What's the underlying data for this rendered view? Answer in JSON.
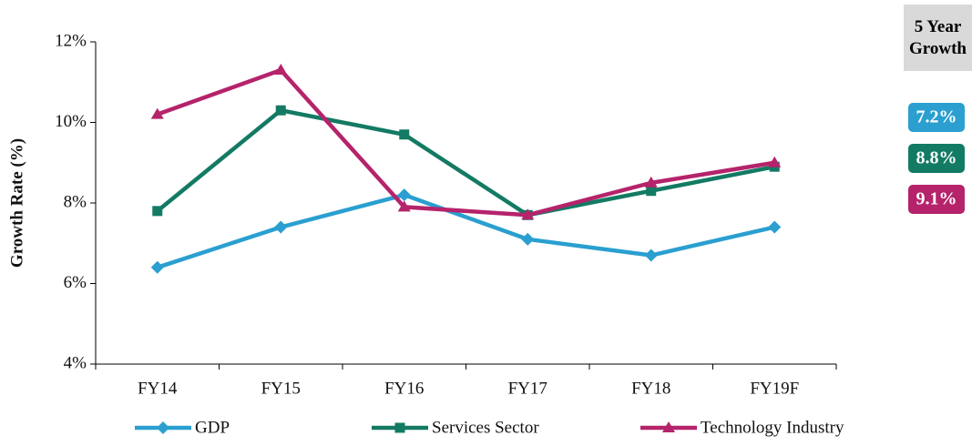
{
  "chart_data": {
    "type": "line",
    "y_label": "Growth Rate (%)",
    "categories": [
      "FY14",
      "FY15",
      "FY16",
      "FY17",
      "FY18",
      "FY19F"
    ],
    "series": [
      {
        "name": "GDP",
        "color": "#2a9fd0",
        "marker": "diamond",
        "values": [
          6.4,
          7.4,
          8.2,
          7.1,
          6.7,
          7.4
        ]
      },
      {
        "name": "Services Sector",
        "color": "#137a63",
        "marker": "square",
        "values": [
          7.8,
          10.3,
          9.7,
          7.7,
          8.3,
          8.9
        ]
      },
      {
        "name": "Technology Industry",
        "color": "#b5236b",
        "marker": "triangle",
        "values": [
          10.2,
          11.3,
          7.9,
          7.7,
          8.5,
          9.0
        ]
      }
    ],
    "ylim": [
      4,
      12
    ],
    "yticks": [
      {
        "value": 4,
        "label": "4%"
      },
      {
        "value": 6,
        "label": "6%"
      },
      {
        "value": 8,
        "label": "8%"
      },
      {
        "value": 10,
        "label": "10%"
      },
      {
        "value": 12,
        "label": "12%"
      }
    ],
    "growth_header": "5 Year Growth",
    "growth": [
      7.2,
      8.8,
      9.1
    ],
    "growth_labels": [
      "7.2%",
      "8.8%",
      "9.1%"
    ]
  }
}
